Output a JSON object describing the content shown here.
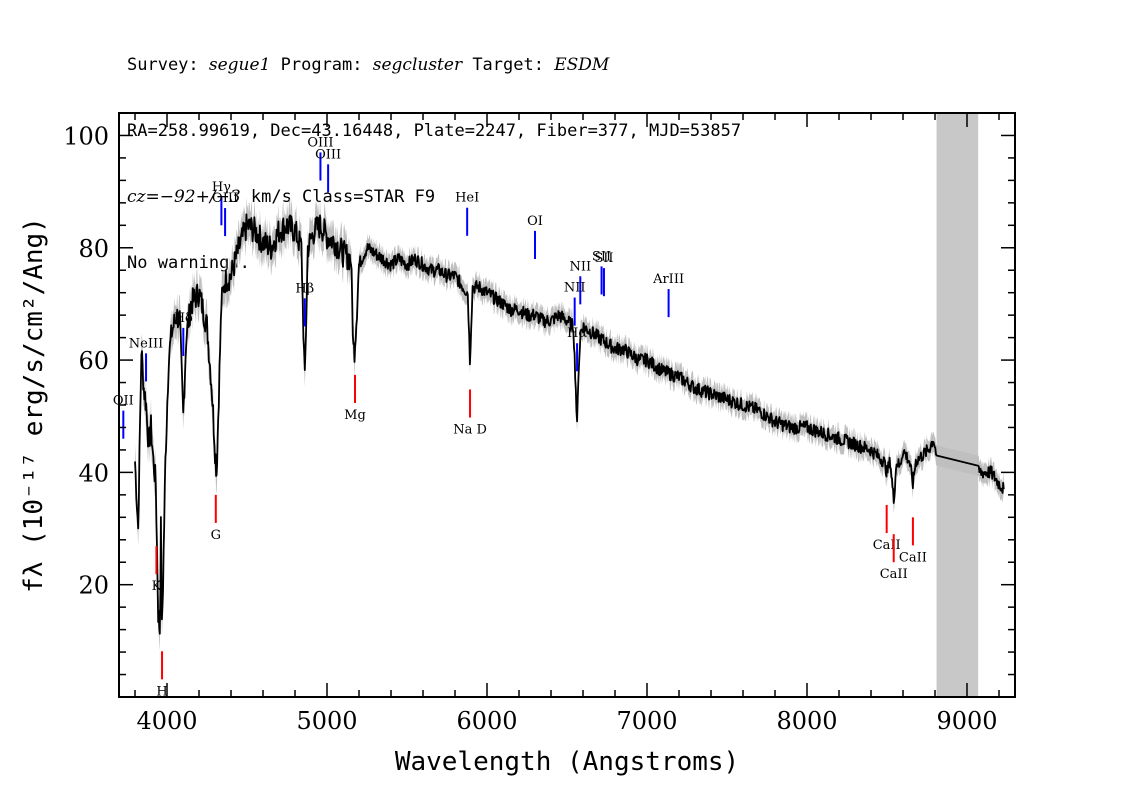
{
  "header": {
    "line1": {
      "k1": "Survey: ",
      "v1": "segue1",
      "k2": " Program: ",
      "v2": "segcluster",
      "k3": " Target: ",
      "v3": "ESDM"
    },
    "line2": "RA=258.99619, Dec=43.16448, Plate=2247, Fiber=377, MJD=53857",
    "line3": {
      "cz": "cz=−92+/−3",
      "rest": " km/s Class=STAR F9"
    },
    "line4": "No warnings."
  },
  "chart_data": {
    "type": "line",
    "xlabel": "Wavelength (Angstroms)",
    "ylabel": "fλ (10⁻¹⁷ erg/s/cm²/Ang)",
    "xlim": [
      3700,
      9300
    ],
    "ylim": [
      0,
      104
    ],
    "xticks": [
      "4000",
      "5000",
      "6000",
      "7000",
      "8000",
      "9000"
    ],
    "yticks": [
      "20",
      "40",
      "60",
      "80",
      "100"
    ],
    "grid": false,
    "legend": "none",
    "masked_region": [
      8810,
      9070
    ],
    "colors": {
      "flux": "#000000",
      "error": "#bfbfbf",
      "emission": "#0000ff",
      "absorption": "#ff0000",
      "mask": "#c8c8c8"
    },
    "series": [
      {
        "x": [
          3800,
          3820,
          3840,
          3855,
          3870,
          3885,
          3900,
          3915,
          3930,
          3945,
          3955,
          3962,
          3968,
          3975,
          3990,
          4010,
          4030,
          4060,
          4080,
          4101,
          4120,
          4150,
          4200,
          4250,
          4280,
          4300,
          4310,
          4320,
          4340,
          4360,
          4400,
          4450,
          4500,
          4550,
          4600,
          4650,
          4700,
          4750,
          4800,
          4840,
          4861,
          4880,
          4920,
          4960,
          5000,
          5050,
          5100,
          5150,
          5165,
          5172,
          5183,
          5200,
          5250,
          5300,
          5350,
          5400,
          5450,
          5500,
          5550,
          5600,
          5650,
          5700,
          5750,
          5800,
          5850,
          5880,
          5893,
          5910,
          5950,
          6000,
          6050,
          6100,
          6150,
          6200,
          6250,
          6300,
          6350,
          6400,
          6450,
          6500,
          6540,
          6555,
          6563,
          6572,
          6585,
          6600,
          6650,
          6700,
          6750,
          6800,
          6850,
          6900,
          6950,
          7000,
          7100,
          7200,
          7300,
          7400,
          7500,
          7600,
          7700,
          7800,
          7900,
          8000,
          8100,
          8200,
          8300,
          8400,
          8480,
          8500,
          8520,
          8542,
          8560,
          8580,
          8600,
          8640,
          8662,
          8680,
          8720,
          8760,
          8790,
          8810,
          9070,
          9100,
          9150,
          9200,
          9230
        ],
        "values": [
          42,
          30,
          62,
          55,
          52,
          45,
          48,
          42,
          38,
          15,
          12,
          30,
          12,
          20,
          42,
          60,
          65,
          68,
          67,
          50,
          64,
          70,
          72,
          66,
          55,
          44,
          40,
          50,
          70,
          74,
          75,
          80,
          84,
          83,
          81,
          80,
          83,
          84,
          83,
          80,
          56,
          80,
          83,
          84,
          82,
          81,
          79,
          78,
          62,
          62,
          67,
          77,
          80,
          79,
          78,
          77,
          78,
          77,
          78,
          77,
          76,
          76,
          75,
          75,
          73,
          72,
          60,
          73,
          73,
          72,
          71,
          70,
          69,
          69,
          68,
          68,
          67,
          67,
          68,
          67,
          66,
          55,
          48,
          58,
          65,
          66,
          65,
          64,
          63,
          62,
          62,
          61,
          60,
          60,
          58,
          57,
          55,
          54,
          53,
          52,
          51,
          49,
          48,
          48,
          47,
          46,
          45,
          44,
          42,
          40,
          42,
          35,
          42,
          41,
          44,
          42,
          38,
          42,
          43,
          44,
          46,
          43,
          40,
          40,
          40,
          38,
          37
        ]
      }
    ],
    "emission_lines": [
      {
        "label": "OII",
        "x": 3727
      },
      {
        "label": "NeIII",
        "x": 3869
      },
      {
        "label": "Hδ",
        "x": 4102
      },
      {
        "label": "Hγ",
        "x": 4340
      },
      {
        "label": "OIII",
        "x": 4363
      },
      {
        "label": "Hβ",
        "x": 4861
      },
      {
        "label": "OIII",
        "x": 4959
      },
      {
        "label": "OIII",
        "x": 5007
      },
      {
        "label": "HeI",
        "x": 5876
      },
      {
        "label": "OI",
        "x": 6300
      },
      {
        "label": "NII",
        "x": 6548
      },
      {
        "label": "Hα",
        "x": 6563
      },
      {
        "label": "NII",
        "x": 6583
      },
      {
        "label": "SII",
        "x": 6716
      },
      {
        "label": "SII",
        "x": 6731
      },
      {
        "label": "ArIII",
        "x": 7135
      }
    ],
    "absorption_lines": [
      {
        "label": "K",
        "x": 3934
      },
      {
        "label": "H",
        "x": 3969
      },
      {
        "label": "G",
        "x": 4305
      },
      {
        "label": "Mg",
        "x": 5175
      },
      {
        "label": "Na D",
        "x": 5894
      },
      {
        "label": "CaII",
        "x": 8498
      },
      {
        "label": "CaII",
        "x": 8542
      },
      {
        "label": "CaII",
        "x": 8662
      }
    ]
  }
}
